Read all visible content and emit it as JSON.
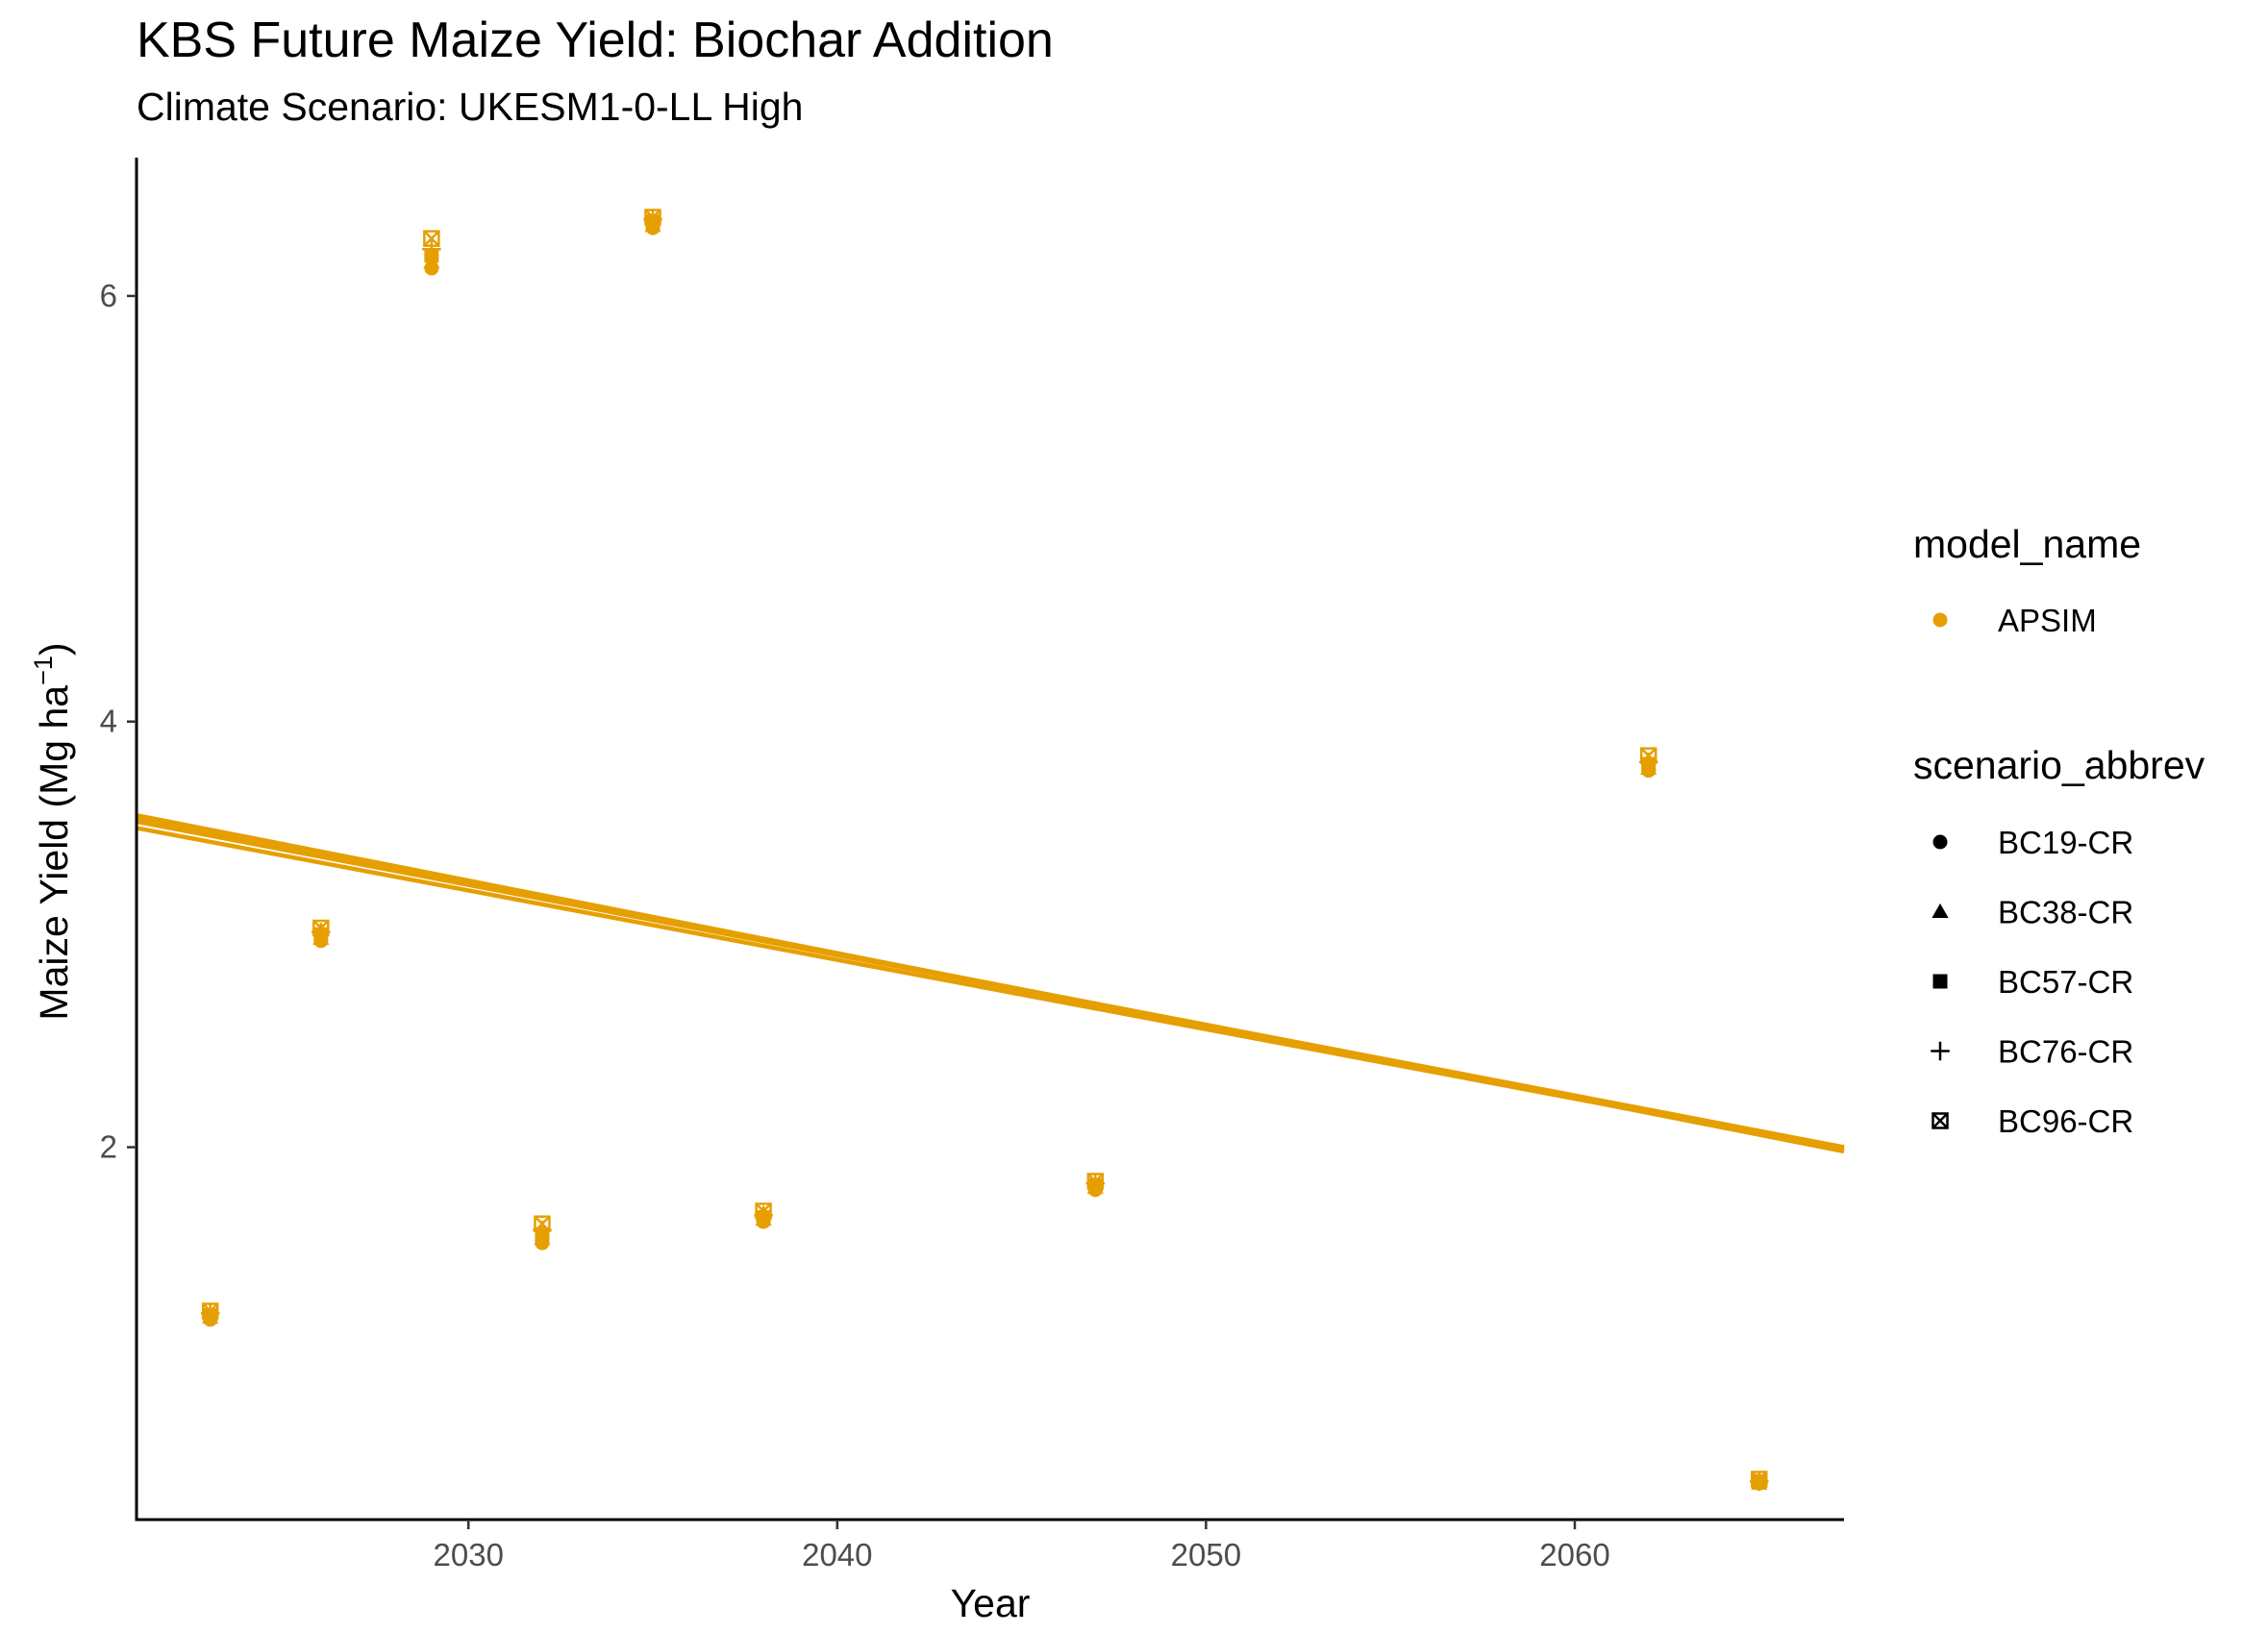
{
  "chart_data": {
    "type": "scatter",
    "title": "KBS Future Maize Yield: Biochar Addition",
    "subtitle": "Climate Scenario: UKESM1-0-LL High",
    "xlabel": "Year",
    "ylabel_main": "Maize Yield (Mg ha",
    "ylabel_sup": "−1",
    "ylabel_end": ")",
    "xlim": [
      2021,
      2067.3
    ],
    "ylim": [
      0.25,
      6.65
    ],
    "x_ticks": [
      2030,
      2040,
      2050,
      2060
    ],
    "y_ticks": [
      2,
      4,
      6
    ],
    "grid": false,
    "legend_position": "right",
    "color": "#E69F00",
    "color_legend": {
      "title": "model_name",
      "entries": [
        {
          "label": "APSIM",
          "color": "#E69F00"
        }
      ]
    },
    "shape_legend": {
      "title": "scenario_abbrev",
      "entries": [
        {
          "label": "BC19-CR",
          "shape": "circle"
        },
        {
          "label": "BC38-CR",
          "shape": "triangle"
        },
        {
          "label": "BC57-CR",
          "shape": "square"
        },
        {
          "label": "BC76-CR",
          "shape": "plus"
        },
        {
          "label": "BC96-CR",
          "shape": "square-x"
        }
      ]
    },
    "x": [
      2023,
      2026,
      2029,
      2032,
      2035,
      2038,
      2047,
      2062,
      2065
    ],
    "series": [
      {
        "name": "BC19-CR",
        "shape": "circle",
        "model": "APSIM",
        "values": [
          1.19,
          2.97,
          6.13,
          1.55,
          6.32,
          1.65,
          1.8,
          3.77,
          0.42
        ],
        "trend": [
          3.53,
          2.0
        ]
      },
      {
        "name": "BC38-CR",
        "shape": "triangle",
        "model": "APSIM",
        "values": [
          1.2,
          2.98,
          6.16,
          1.57,
          6.33,
          1.66,
          1.81,
          3.78,
          0.42
        ],
        "trend": [
          3.54,
          2.0
        ]
      },
      {
        "name": "BC57-CR",
        "shape": "square",
        "model": "APSIM",
        "values": [
          1.21,
          3.0,
          6.19,
          1.59,
          6.35,
          1.67,
          1.82,
          3.8,
          0.43
        ],
        "trend": [
          3.55,
          1.99
        ]
      },
      {
        "name": "BC76-CR",
        "shape": "plus",
        "model": "APSIM",
        "values": [
          1.22,
          3.01,
          6.22,
          1.61,
          6.36,
          1.68,
          1.83,
          3.81,
          0.43
        ],
        "trend": [
          3.56,
          1.98
        ]
      },
      {
        "name": "BC96-CR",
        "shape": "square-x",
        "model": "APSIM",
        "values": [
          1.23,
          3.03,
          6.27,
          1.64,
          6.37,
          1.7,
          1.84,
          3.84,
          0.44
        ],
        "trend": [
          3.5,
          1.99
        ]
      }
    ]
  }
}
